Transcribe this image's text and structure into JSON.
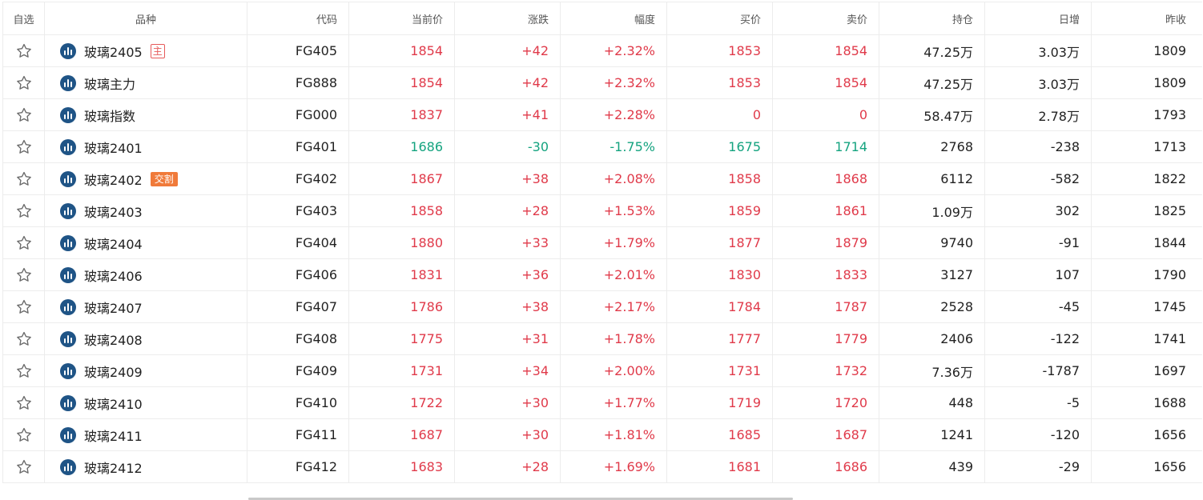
{
  "colors": {
    "up": "#e03a4a",
    "down": "#14a37f",
    "icon_bg": "#1f5486",
    "badge_main": "#e65a5a",
    "badge_delivery": "#f07a3a"
  },
  "icons": {
    "favorite": "star-outline-icon",
    "chart": "bar-chart-circle-icon"
  },
  "headers": [
    "自选",
    "品种",
    "代码",
    "当前价",
    "涨跌",
    "幅度",
    "买价",
    "卖价",
    "持仓",
    "日增",
    "昨收"
  ],
  "rows": [
    {
      "name": "玻璃2405",
      "badge": "主",
      "code": "FG405",
      "price": "1854",
      "change": "+42",
      "pct": "+2.32%",
      "bid": "1853",
      "ask": "1854",
      "oi": "47.25万",
      "daily": "3.03万",
      "prev": "1809",
      "trend": "up"
    },
    {
      "name": "玻璃主力",
      "code": "FG888",
      "price": "1854",
      "change": "+42",
      "pct": "+2.32%",
      "bid": "1853",
      "ask": "1854",
      "oi": "47.25万",
      "daily": "3.03万",
      "prev": "1809",
      "trend": "up"
    },
    {
      "name": "玻璃指数",
      "code": "FG000",
      "price": "1837",
      "change": "+41",
      "pct": "+2.28%",
      "bid": "0",
      "ask": "0",
      "oi": "58.47万",
      "daily": "2.78万",
      "prev": "1793",
      "trend": "up"
    },
    {
      "name": "玻璃2401",
      "code": "FG401",
      "price": "1686",
      "change": "-30",
      "pct": "-1.75%",
      "bid": "1675",
      "ask": "1714",
      "oi": "2768",
      "daily": "-238",
      "prev": "1713",
      "trend": "down"
    },
    {
      "name": "玻璃2402",
      "badge": "交割",
      "code": "FG402",
      "price": "1867",
      "change": "+38",
      "pct": "+2.08%",
      "bid": "1858",
      "ask": "1868",
      "oi": "6112",
      "daily": "-582",
      "prev": "1822",
      "trend": "up"
    },
    {
      "name": "玻璃2403",
      "code": "FG403",
      "price": "1858",
      "change": "+28",
      "pct": "+1.53%",
      "bid": "1859",
      "ask": "1861",
      "oi": "1.09万",
      "daily": "302",
      "prev": "1825",
      "trend": "up"
    },
    {
      "name": "玻璃2404",
      "code": "FG404",
      "price": "1880",
      "change": "+33",
      "pct": "+1.79%",
      "bid": "1877",
      "ask": "1879",
      "oi": "9740",
      "daily": "-91",
      "prev": "1844",
      "trend": "up"
    },
    {
      "name": "玻璃2406",
      "code": "FG406",
      "price": "1831",
      "change": "+36",
      "pct": "+2.01%",
      "bid": "1830",
      "ask": "1833",
      "oi": "3127",
      "daily": "107",
      "prev": "1790",
      "trend": "up"
    },
    {
      "name": "玻璃2407",
      "code": "FG407",
      "price": "1786",
      "change": "+38",
      "pct": "+2.17%",
      "bid": "1784",
      "ask": "1787",
      "oi": "2528",
      "daily": "-45",
      "prev": "1745",
      "trend": "up"
    },
    {
      "name": "玻璃2408",
      "code": "FG408",
      "price": "1775",
      "change": "+31",
      "pct": "+1.78%",
      "bid": "1777",
      "ask": "1779",
      "oi": "2406",
      "daily": "-122",
      "prev": "1741",
      "trend": "up"
    },
    {
      "name": "玻璃2409",
      "code": "FG409",
      "price": "1731",
      "change": "+34",
      "pct": "+2.00%",
      "bid": "1731",
      "ask": "1732",
      "oi": "7.36万",
      "daily": "-1787",
      "prev": "1697",
      "trend": "up"
    },
    {
      "name": "玻璃2410",
      "code": "FG410",
      "price": "1722",
      "change": "+30",
      "pct": "+1.77%",
      "bid": "1719",
      "ask": "1720",
      "oi": "448",
      "daily": "-5",
      "prev": "1688",
      "trend": "up"
    },
    {
      "name": "玻璃2411",
      "code": "FG411",
      "price": "1687",
      "change": "+30",
      "pct": "+1.81%",
      "bid": "1685",
      "ask": "1687",
      "oi": "1241",
      "daily": "-120",
      "prev": "1656",
      "trend": "up"
    },
    {
      "name": "玻璃2412",
      "code": "FG412",
      "price": "1683",
      "change": "+28",
      "pct": "+1.69%",
      "bid": "1681",
      "ask": "1686",
      "oi": "439",
      "daily": "-29",
      "prev": "1656",
      "trend": "up"
    }
  ]
}
